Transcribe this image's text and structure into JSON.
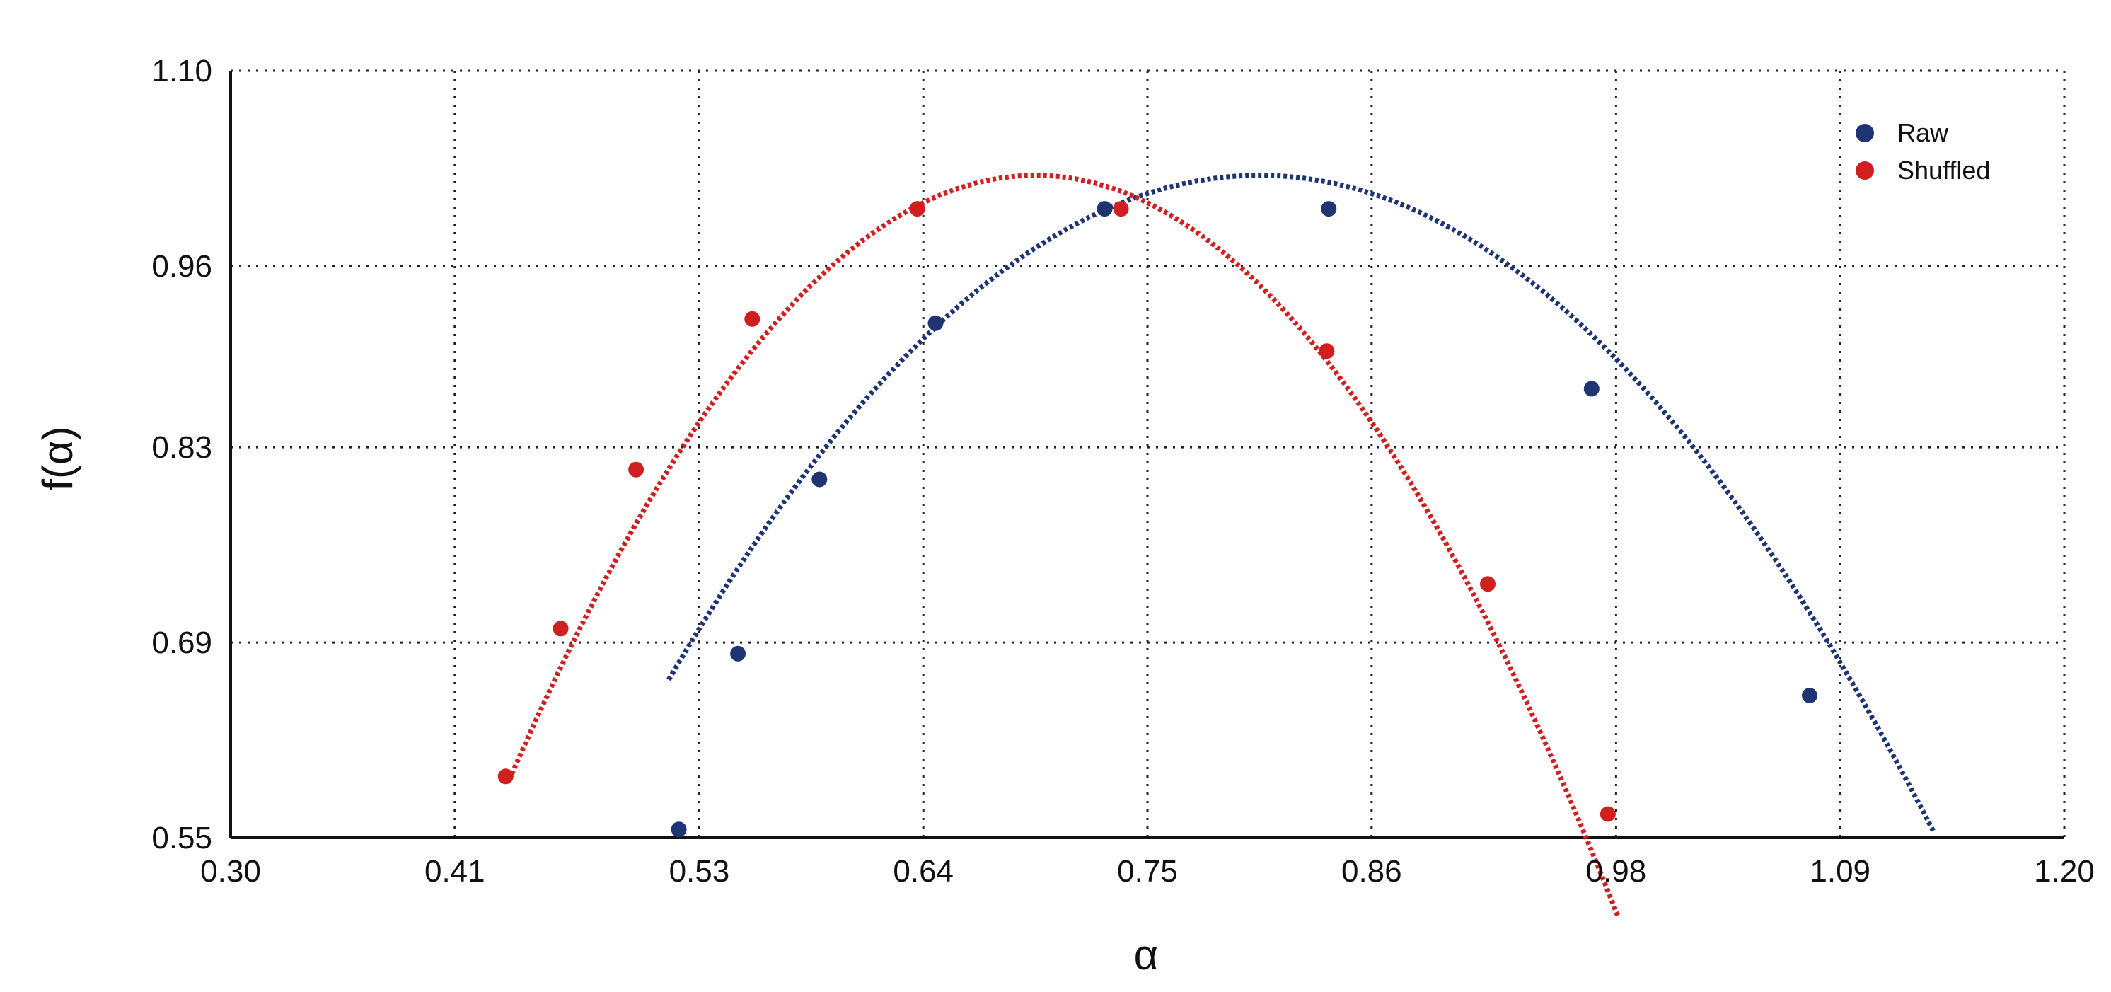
{
  "chart_data": {
    "type": "scatter",
    "title": "",
    "xlabel": "α",
    "ylabel": "f(α)",
    "xlim": [
      0.3,
      1.2
    ],
    "ylim": [
      0.55,
      1.1
    ],
    "x_ticks": [
      "0.30",
      "0.41",
      "0.53",
      "0.64",
      "0.75",
      "0.86",
      "0.98",
      "1.09",
      "1.20"
    ],
    "y_ticks": [
      "0.55",
      "0.69",
      "0.83",
      "0.96",
      "1.10"
    ],
    "grid": true,
    "legend_position": "top-right",
    "series": [
      {
        "name": "Raw",
        "color": "#1f3473",
        "points": [
          {
            "x": 0.52,
            "y": 0.556
          },
          {
            "x": 0.549,
            "y": 0.682
          },
          {
            "x": 0.589,
            "y": 0.807
          },
          {
            "x": 0.646,
            "y": 0.919
          },
          {
            "x": 0.729,
            "y": 1.001
          },
          {
            "x": 0.839,
            "y": 1.001
          },
          {
            "x": 0.968,
            "y": 0.872
          },
          {
            "x": 1.075,
            "y": 0.652
          }
        ],
        "fit": {
          "vertex_x": 0.805,
          "vertex_y": 1.025,
          "curvature": 4.3,
          "x_range": [
            0.515,
            1.136
          ]
        }
      },
      {
        "name": "Shuffled",
        "color": "#cf1f1f",
        "points": [
          {
            "x": 0.435,
            "y": 0.594
          },
          {
            "x": 0.462,
            "y": 0.7
          },
          {
            "x": 0.499,
            "y": 0.814
          },
          {
            "x": 0.556,
            "y": 0.922
          },
          {
            "x": 0.637,
            "y": 1.001
          },
          {
            "x": 0.737,
            "y": 1.001
          },
          {
            "x": 0.838,
            "y": 0.899
          },
          {
            "x": 0.917,
            "y": 0.732
          },
          {
            "x": 0.976,
            "y": 0.567
          }
        ],
        "fit": {
          "vertex_x": 0.695,
          "vertex_y": 1.025,
          "curvature": 6.5,
          "x_range": [
            0.438,
            0.981
          ]
        }
      }
    ]
  }
}
